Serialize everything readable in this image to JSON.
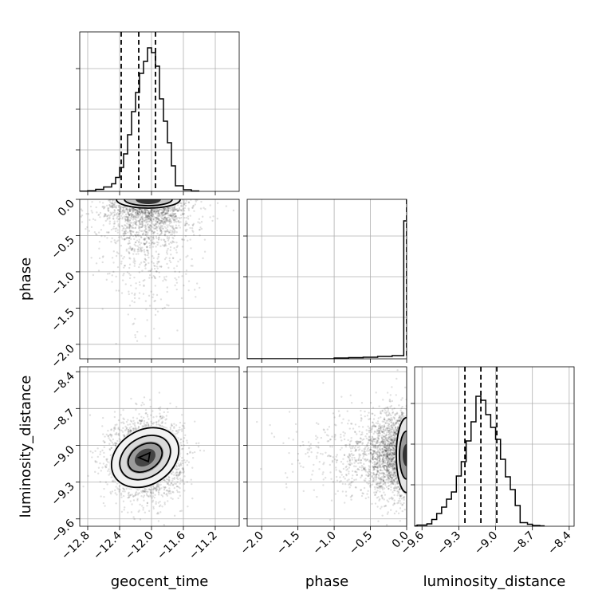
{
  "chart_data": {
    "type": "corner",
    "parameters": [
      "geocent_time",
      "phase",
      "luminosity_distance"
    ],
    "axis_labels": {
      "x": [
        "geocent_time",
        "phase",
        "luminosity_distance"
      ],
      "y": [
        "",
        "phase",
        "luminosity_distance"
      ]
    },
    "ranges": {
      "geocent_time": [
        -12.9,
        -10.9
      ],
      "phase": [
        -2.2,
        0.0
      ],
      "luminosity_distance": [
        -9.66,
        -8.36
      ]
    },
    "ticks": {
      "geocent_time": [
        "-12.8",
        "-12.4",
        "-12.0",
        "-11.6",
        "-11.2"
      ],
      "phase": [
        "-2.0",
        "-1.5",
        "-1.0",
        "-0.5",
        "0.0"
      ],
      "luminosity_distance": [
        "-9.6",
        "-9.3",
        "-9.0",
        "-8.7",
        "-8.4"
      ]
    },
    "tick_values": {
      "geocent_time": [
        -12.8,
        -12.4,
        -12.0,
        -11.6,
        -11.2
      ],
      "phase": [
        -2.0,
        -1.5,
        -1.0,
        -0.5,
        0.0
      ],
      "luminosity_distance": [
        -9.6,
        -9.3,
        -9.0,
        -8.7,
        -8.4
      ]
    },
    "histograms": {
      "geocent_time": {
        "bin_edges": [
          -12.9,
          -12.8,
          -12.7,
          -12.6,
          -12.5,
          -12.45,
          -12.4,
          -12.35,
          -12.3,
          -12.25,
          -12.2,
          -12.15,
          -12.1,
          -12.05,
          -12.0,
          -11.95,
          -11.9,
          -11.85,
          -11.8,
          -11.75,
          -11.7,
          -11.6,
          -11.5,
          -11.4
        ],
        "counts": [
          0.3,
          0.8,
          2.5,
          5.5,
          9.5,
          17.5,
          30,
          47,
          71,
          100,
          124,
          148,
          163,
          180,
          174,
          157,
          116,
          88,
          61,
          32,
          7,
          2,
          0.5
        ],
        "quantiles": [
          -12.38,
          -12.16,
          -11.95
        ]
      },
      "phase": {
        "bin_edges": [
          -2.2,
          -1.0,
          -0.8,
          -0.6,
          -0.4,
          -0.2,
          -0.04,
          0.0
        ],
        "counts": [
          0,
          1,
          1.5,
          2,
          3,
          4,
          173
        ],
        "quantiles": [
          0.0
        ]
      },
      "luminosity_distance": {
        "bin_edges": [
          -9.66,
          -9.64,
          -9.56,
          -9.52,
          -9.48,
          -9.44,
          -9.4,
          -9.36,
          -9.32,
          -9.28,
          -9.24,
          -9.2,
          -9.16,
          -9.12,
          -9.08,
          -9.04,
          -9.0,
          -8.96,
          -8.92,
          -8.88,
          -8.84,
          -8.8,
          -8.74,
          -8.7,
          -8.64,
          -8.6
        ],
        "counts": [
          0.5,
          1.5,
          3,
          8.5,
          16,
          24,
          34,
          43,
          63,
          81,
          107,
          131,
          163,
          158,
          140,
          124,
          109,
          84,
          62,
          46,
          26,
          4.5,
          2.5,
          1,
          0.5
        ],
        "quantiles": [
          -9.25,
          -9.12,
          -8.99
        ]
      }
    },
    "joint": {
      "phase_vs_geocent_time": {
        "center": [
          -12.04,
          -0.02
        ],
        "scatter_spread": [
          0.28,
          0.5
        ]
      },
      "luminosity_distance_vs_geocent_time": {
        "center": [
          -12.06,
          -9.1
        ],
        "contour_levels": 4
      },
      "luminosity_distance_vs_phase": {
        "center": [
          -0.02,
          -9.08
        ],
        "scatter_spread": [
          0.4,
          0.18
        ]
      }
    },
    "grid": true
  }
}
